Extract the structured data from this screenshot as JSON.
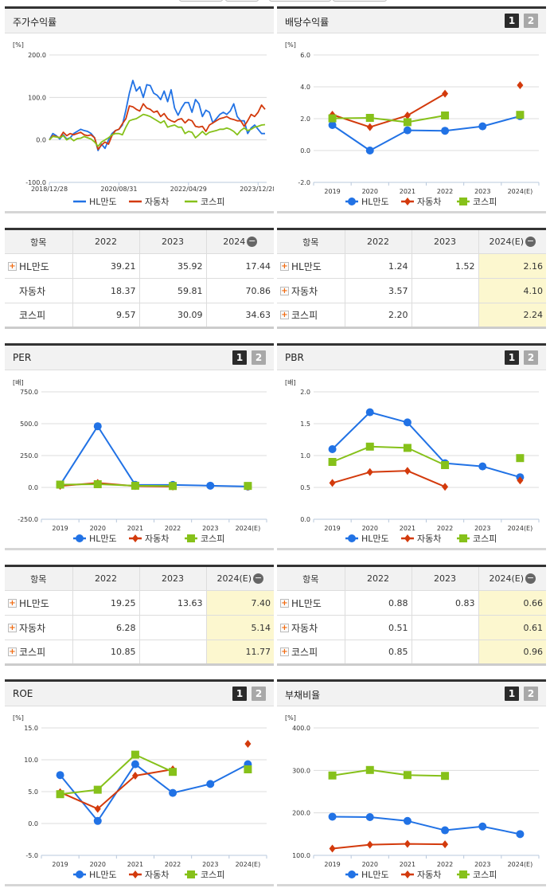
{
  "colors": {
    "HL만도": "#2172e5",
    "자동차": "#d33a0c",
    "코스피": "#86c11a",
    "highlight": "#fcf7cf"
  },
  "pager": {
    "page1": "1",
    "page2": "2"
  },
  "charts": {
    "stock": {
      "title": "주가수익률",
      "unit": "[%]"
    },
    "dividend": {
      "title": "배당수익률",
      "unit": "[%]"
    },
    "per": {
      "title": "PER",
      "unit": "[배]"
    },
    "pbr": {
      "title": "PBR",
      "unit": "[배]"
    },
    "roe": {
      "title": "ROE",
      "unit": "[%]"
    },
    "debt": {
      "title": "부채비율",
      "unit": "[%]"
    }
  },
  "chart_data": [
    {
      "id": "stock",
      "type": "line",
      "ylim": [
        -100,
        200
      ],
      "yticks": [
        "200.0",
        "100.0",
        "0.0",
        "-100.0"
      ],
      "ytick_values": [
        200,
        100,
        0,
        -100
      ],
      "x_tick_labels": [
        "2018/12/28",
        "2020/08/31",
        "2022/04/29",
        "2023/12/28"
      ],
      "x_tick_dates": [
        "2018/12",
        "2020/08",
        "2022/04",
        "2023/12"
      ],
      "x": [
        "2018/12",
        "2019/01",
        "2019/02",
        "2019/03",
        "2019/04",
        "2019/05",
        "2019/06",
        "2019/07",
        "2019/08",
        "2019/09",
        "2019/10",
        "2019/11",
        "2019/12",
        "2020/01",
        "2020/02",
        "2020/03",
        "2020/04",
        "2020/05",
        "2020/06",
        "2020/07",
        "2020/08",
        "2020/09",
        "2020/10",
        "2020/11",
        "2020/12",
        "2021/01",
        "2021/02",
        "2021/03",
        "2021/04",
        "2021/05",
        "2021/06",
        "2021/07",
        "2021/08",
        "2021/09",
        "2021/10",
        "2021/11",
        "2021/12",
        "2022/01",
        "2022/02",
        "2022/03",
        "2022/04",
        "2022/05",
        "2022/06",
        "2022/07",
        "2022/08",
        "2022/09",
        "2022/10",
        "2022/11",
        "2022/12",
        "2023/01",
        "2023/02",
        "2023/03",
        "2023/04",
        "2023/05",
        "2023/06",
        "2023/07",
        "2023/08",
        "2023/09",
        "2023/10",
        "2023/11",
        "2023/12",
        "2024/01",
        "2024/02"
      ],
      "series": [
        {
          "name": "HL만도",
          "values": [
            0,
            15,
            10,
            2,
            12,
            2,
            5,
            15,
            20,
            25,
            22,
            20,
            15,
            5,
            -25,
            -10,
            -20,
            0,
            15,
            22,
            25,
            35,
            70,
            110,
            140,
            115,
            125,
            100,
            130,
            128,
            110,
            105,
            95,
            115,
            90,
            118,
            75,
            58,
            75,
            88,
            88,
            65,
            95,
            85,
            55,
            70,
            65,
            40,
            50,
            60,
            65,
            60,
            68,
            85,
            55,
            45,
            45,
            15,
            28,
            35,
            25,
            15,
            15
          ]
        },
        {
          "name": "자동차",
          "values": [
            0,
            10,
            8,
            5,
            18,
            10,
            15,
            12,
            15,
            18,
            12,
            10,
            12,
            5,
            -22,
            -12,
            -5,
            -10,
            10,
            22,
            25,
            38,
            50,
            80,
            78,
            72,
            68,
            85,
            75,
            72,
            65,
            68,
            55,
            62,
            50,
            45,
            42,
            48,
            50,
            40,
            48,
            45,
            32,
            30,
            32,
            20,
            35,
            40,
            45,
            50,
            52,
            55,
            50,
            48,
            45,
            45,
            32,
            45,
            60,
            55,
            65,
            82,
            72
          ]
        },
        {
          "name": "코스피",
          "values": [
            0,
            8,
            7,
            5,
            10,
            0,
            5,
            -2,
            3,
            4,
            8,
            5,
            2,
            -5,
            -15,
            -5,
            0,
            5,
            12,
            15,
            15,
            12,
            30,
            45,
            48,
            50,
            55,
            60,
            58,
            55,
            50,
            45,
            40,
            45,
            30,
            33,
            35,
            30,
            30,
            15,
            20,
            18,
            5,
            12,
            20,
            12,
            18,
            20,
            22,
            25,
            25,
            28,
            25,
            20,
            12,
            22,
            28,
            22,
            25,
            30,
            32,
            35,
            36
          ]
        }
      ],
      "legend": "bottom",
      "grid": true
    },
    {
      "id": "dividend",
      "type": "line",
      "ylim": [
        -2,
        6
      ],
      "yticks": [
        "6.0",
        "4.0",
        "2.0",
        "0.0",
        "-2.0"
      ],
      "ytick_values": [
        6,
        4,
        2,
        0,
        -2
      ],
      "categories": [
        "2019",
        "2020",
        "2021",
        "2022",
        "2023",
        "2024(E)"
      ],
      "series": [
        {
          "name": "HL만도",
          "values": [
            1.6,
            0.0,
            1.27,
            1.24,
            1.52,
            2.16
          ]
        },
        {
          "name": "자동차",
          "values": [
            2.25,
            1.47,
            2.2,
            3.57,
            null,
            4.1
          ]
        },
        {
          "name": "코스피",
          "values": [
            2.02,
            2.05,
            1.78,
            2.2,
            null,
            2.24
          ]
        }
      ],
      "legend": "bottom",
      "grid": true
    },
    {
      "id": "per",
      "type": "line",
      "ylim": [
        -250,
        750
      ],
      "yticks": [
        "750.0",
        "500.0",
        "250.0",
        "0.0",
        "-250.0"
      ],
      "ytick_values": [
        750,
        500,
        250,
        0,
        -250
      ],
      "categories": [
        "2019",
        "2020",
        "2021",
        "2022",
        "2023",
        "2024(E)"
      ],
      "series": [
        {
          "name": "HL만도",
          "values": [
            20,
            480,
            20,
            19.25,
            13.63,
            7.4
          ]
        },
        {
          "name": "자동차",
          "values": [
            12,
            35,
            10,
            6.28,
            null,
            5.14
          ]
        },
        {
          "name": "코스피",
          "values": [
            22,
            25,
            13,
            10.85,
            null,
            11.77
          ]
        }
      ],
      "legend": "bottom",
      "grid": true
    },
    {
      "id": "pbr",
      "type": "line",
      "ylim": [
        0,
        2
      ],
      "yticks": [
        "2.0",
        "1.5",
        "1.0",
        "0.5",
        "0.0"
      ],
      "ytick_values": [
        2,
        1.5,
        1,
        0.5,
        0
      ],
      "categories": [
        "2019",
        "2020",
        "2021",
        "2022",
        "2023",
        "2024(E)"
      ],
      "series": [
        {
          "name": "HL만도",
          "values": [
            1.1,
            1.68,
            1.52,
            0.88,
            0.83,
            0.66
          ]
        },
        {
          "name": "자동차",
          "values": [
            0.57,
            0.74,
            0.76,
            0.51,
            null,
            0.61
          ]
        },
        {
          "name": "코스피",
          "values": [
            0.9,
            1.14,
            1.12,
            0.85,
            null,
            0.96
          ]
        }
      ],
      "legend": "bottom",
      "grid": true
    },
    {
      "id": "roe",
      "type": "line",
      "ylim": [
        -5,
        15
      ],
      "yticks": [
        "15.0",
        "10.0",
        "5.0",
        "0.0",
        "-5.0"
      ],
      "ytick_values": [
        15,
        10,
        5,
        0,
        -5
      ],
      "categories": [
        "2019",
        "2020",
        "2021",
        "2022",
        "2023",
        "2024(E)"
      ],
      "series": [
        {
          "name": "HL만도",
          "values": [
            7.6,
            0.4,
            9.3,
            4.8,
            6.2,
            9.3
          ]
        },
        {
          "name": "자동차",
          "values": [
            4.9,
            2.3,
            7.5,
            8.5,
            null,
            12.5
          ]
        },
        {
          "name": "코스피",
          "values": [
            4.6,
            5.3,
            10.8,
            8.1,
            null,
            8.5
          ]
        }
      ],
      "legend": "bottom",
      "grid": true
    },
    {
      "id": "debt",
      "type": "line",
      "ylim": [
        100,
        400
      ],
      "yticks": [
        "400.0",
        "300.0",
        "200.0",
        "100.0"
      ],
      "ytick_values": [
        400,
        300,
        200,
        100
      ],
      "categories": [
        "2019",
        "2020",
        "2021",
        "2022",
        "2023",
        "2024(E)"
      ],
      "series": [
        {
          "name": "HL만도",
          "values": [
            191,
            190,
            181,
            159,
            168,
            150
          ]
        },
        {
          "name": "자동차",
          "values": [
            116,
            125,
            127,
            126,
            null,
            null
          ]
        },
        {
          "name": "코스피",
          "values": [
            288,
            301,
            289,
            287,
            null,
            null
          ]
        }
      ],
      "legend": "bottom",
      "grid": true
    }
  ],
  "tables": {
    "stock": {
      "headers": [
        "항목",
        "2022",
        "2023",
        "2024"
      ],
      "rows": [
        {
          "name": "HL만도",
          "plus": true,
          "values": [
            "39.21",
            "35.92",
            "17.44"
          ]
        },
        {
          "name": "자동차",
          "plus": false,
          "values": [
            "18.37",
            "59.81",
            "70.86"
          ]
        },
        {
          "name": "코스피",
          "plus": false,
          "values": [
            "9.57",
            "30.09",
            "34.63"
          ]
        }
      ]
    },
    "dividend": {
      "headers": [
        "항목",
        "2022",
        "2023",
        "2024(E)"
      ],
      "rows": [
        {
          "name": "HL만도",
          "plus": true,
          "values": [
            "1.24",
            "1.52",
            "2.16"
          ]
        },
        {
          "name": "자동차",
          "plus": true,
          "values": [
            "3.57",
            "",
            "4.10"
          ]
        },
        {
          "name": "코스피",
          "plus": true,
          "values": [
            "2.20",
            "",
            "2.24"
          ]
        }
      ]
    },
    "per": {
      "headers": [
        "항목",
        "2022",
        "2023",
        "2024(E)"
      ],
      "rows": [
        {
          "name": "HL만도",
          "plus": true,
          "values": [
            "19.25",
            "13.63",
            "7.40"
          ]
        },
        {
          "name": "자동차",
          "plus": true,
          "values": [
            "6.28",
            "",
            "5.14"
          ]
        },
        {
          "name": "코스피",
          "plus": true,
          "values": [
            "10.85",
            "",
            "11.77"
          ]
        }
      ]
    },
    "pbr": {
      "headers": [
        "항목",
        "2022",
        "2023",
        "2024(E)"
      ],
      "rows": [
        {
          "name": "HL만도",
          "plus": true,
          "values": [
            "0.88",
            "0.83",
            "0.66"
          ]
        },
        {
          "name": "자동차",
          "plus": true,
          "values": [
            "0.51",
            "",
            "0.61"
          ]
        },
        {
          "name": "코스피",
          "plus": true,
          "values": [
            "0.85",
            "",
            "0.96"
          ]
        }
      ]
    }
  }
}
